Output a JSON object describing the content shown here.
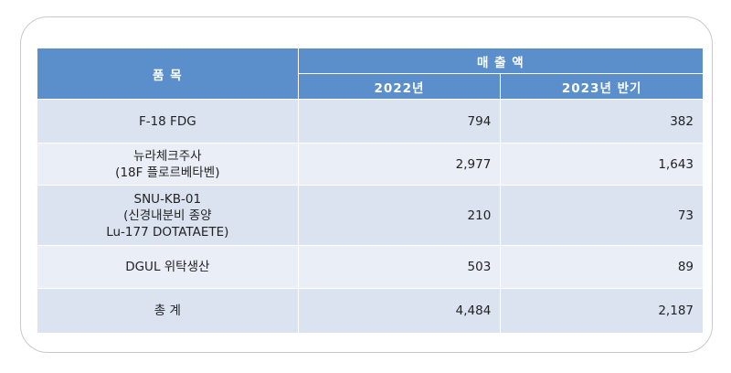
{
  "table": {
    "header": {
      "item": "품 목",
      "sales": "매 출 액",
      "years": [
        "2022년",
        "2023년 반기"
      ]
    },
    "rows": [
      {
        "item": [
          "F-18 FDG"
        ],
        "values": [
          "794",
          "382"
        ]
      },
      {
        "item": [
          "뉴라체크주사",
          "(18F 플로르베타벤)"
        ],
        "values": [
          "2,977",
          "1,643"
        ]
      },
      {
        "item": [
          "SNU-KB-01",
          "(신경내분비 종양",
          "Lu-177 DOTATAETE)"
        ],
        "values": [
          "210",
          "73"
        ]
      },
      {
        "item": [
          "DGUL 위탁생산"
        ],
        "values": [
          "503",
          "89"
        ]
      },
      {
        "item": [
          "총   계"
        ],
        "values": [
          "4,484",
          "2,187"
        ]
      }
    ]
  }
}
